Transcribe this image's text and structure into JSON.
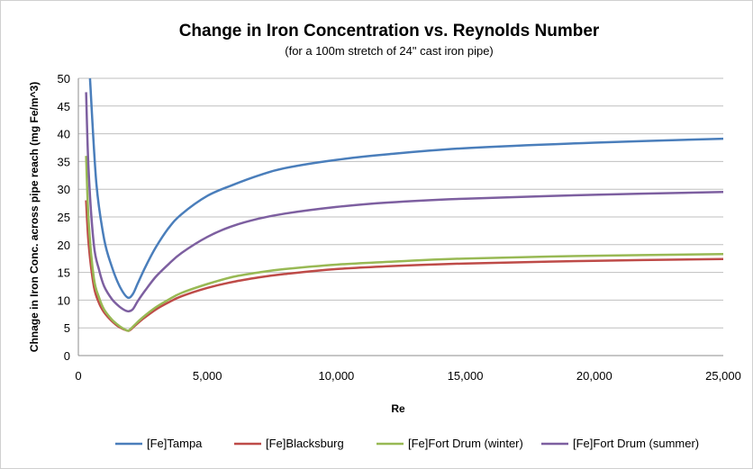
{
  "chart_data": {
    "type": "line",
    "title": "Change in Iron Concentration vs. Reynolds Number",
    "subtitle": "(for a 100m stretch of 24\" cast iron pipe)",
    "xlabel": "Re",
    "ylabel": "Chnage in Iron Conc. across pipe reach (mg Fe/m^3)",
    "xlim": [
      0,
      25000
    ],
    "ylim": [
      0,
      50
    ],
    "x_ticks": [
      0,
      5000,
      10000,
      15000,
      20000,
      25000
    ],
    "x_tick_labels": [
      "0",
      "5,000",
      "10,000",
      "15,000",
      "20,000",
      "25,000"
    ],
    "y_ticks": [
      0,
      5,
      10,
      15,
      20,
      25,
      30,
      35,
      40,
      45,
      50
    ],
    "y_tick_labels": [
      "0",
      "5",
      "10",
      "15",
      "20",
      "25",
      "30",
      "35",
      "40",
      "45",
      "50"
    ],
    "grid": "horizontal",
    "legend_position": "bottom",
    "series": [
      {
        "name": "[Fe]Tampa",
        "color": "#4a7ebb",
        "x": [
          450,
          700,
          1000,
          1300,
          1600,
          1900,
          2100,
          2300,
          2600,
          3000,
          3500,
          4000,
          5000,
          6000,
          7000,
          8000,
          10000,
          12000,
          15000,
          20000,
          25000
        ],
        "y": [
          50,
          31,
          21,
          16,
          12.5,
          10.5,
          11,
          13,
          16,
          19.5,
          23,
          25.5,
          28.8,
          30.8,
          32.5,
          33.8,
          35.3,
          36.3,
          37.4,
          38.4,
          39.1
        ]
      },
      {
        "name": "[Fe]Blacksburg",
        "color": "#be4b48",
        "x": [
          300,
          400,
          600,
          800,
          1000,
          1300,
          1600,
          1900,
          2000,
          2200,
          2500,
          3000,
          3500,
          4000,
          5000,
          6000,
          7000,
          8000,
          10000,
          12000,
          15000,
          20000,
          25000
        ],
        "y": [
          28,
          20,
          12.5,
          9.5,
          7.8,
          6.2,
          5.1,
          4.5,
          4.6,
          5.4,
          6.6,
          8.3,
          9.6,
          10.7,
          12.2,
          13.3,
          14.1,
          14.7,
          15.6,
          16.1,
          16.6,
          17.1,
          17.4
        ]
      },
      {
        "name": "[Fe]Fort Drum (winter)",
        "color": "#98b954",
        "x": [
          300,
          400,
          600,
          800,
          1000,
          1300,
          1600,
          1900,
          2000,
          2200,
          2500,
          3000,
          3500,
          4000,
          5000,
          6000,
          7000,
          8000,
          10000,
          12000,
          15000,
          20000,
          25000
        ],
        "y": [
          36,
          24,
          14,
          10.5,
          8.3,
          6.5,
          5.3,
          4.5,
          4.7,
          5.6,
          6.9,
          8.7,
          10.1,
          11.3,
          12.9,
          14.2,
          15.0,
          15.6,
          16.4,
          16.9,
          17.5,
          18.0,
          18.3
        ]
      },
      {
        "name": "[Fe]Fort Drum (summer)",
        "color": "#7d5fa0",
        "x": [
          300,
          400,
          600,
          800,
          1000,
          1300,
          1600,
          1900,
          2100,
          2300,
          2600,
          3000,
          3500,
          4000,
          5000,
          6000,
          7000,
          8000,
          10000,
          12000,
          15000,
          20000,
          25000
        ],
        "y": [
          47.5,
          33,
          20,
          15.5,
          12.5,
          10.2,
          8.8,
          8,
          8.3,
          9.8,
          11.8,
          14.2,
          16.5,
          18.5,
          21.4,
          23.4,
          24.7,
          25.6,
          26.8,
          27.6,
          28.3,
          29,
          29.5
        ]
      }
    ]
  }
}
